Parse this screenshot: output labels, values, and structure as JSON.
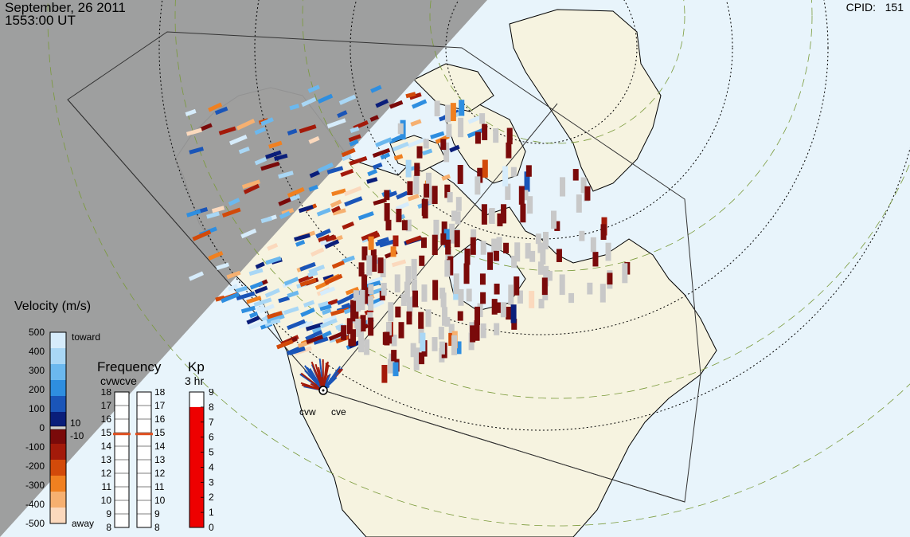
{
  "header": {
    "date": "September, 26 2011",
    "time": "1553:00 UT",
    "cpid_label": "CPID:",
    "cpid_value": "151"
  },
  "velocity_scale": {
    "title": "Velocity (m/s)",
    "ticks": [
      "500",
      "400",
      "300",
      "200",
      "100",
      "0",
      "-100",
      "-200",
      "-300",
      "-400",
      "-500"
    ],
    "toward_label": "toward",
    "away_label": "away",
    "inner_plus": "10",
    "inner_minus": "-10",
    "colors": [
      "#d6ecfb",
      "#a9d7f5",
      "#6bb8ee",
      "#2e8ee0",
      "#1a55b8",
      "#0a1e7a",
      "#7a0a0a",
      "#a31a0a",
      "#d24a0a",
      "#f08020",
      "#f6b070",
      "#fbd9bd"
    ]
  },
  "frequency_panel": {
    "title": "Frequency",
    "radars_label": "cvwcve",
    "ticks": [
      "18",
      "17",
      "16",
      "15",
      "14",
      "13",
      "12",
      "11",
      "10",
      "9",
      "8"
    ],
    "cvw_freq": 14.9,
    "cve_freq": 14.9
  },
  "kp_panel": {
    "title": "Kp",
    "subtitle": "3 hr",
    "ticks": [
      "9",
      "8",
      "7",
      "6",
      "5",
      "4",
      "3",
      "2",
      "1",
      "0"
    ],
    "kp_value": 8.0,
    "fill_color": "#ee0000"
  },
  "radars": [
    {
      "name": "cvw"
    },
    {
      "name": "cve"
    }
  ],
  "map_colors": {
    "night": "#9a9a9a",
    "ocean": "#e8f4fb",
    "land": "#f6f3e0",
    "ground_scatter": "#c8c8c8"
  }
}
